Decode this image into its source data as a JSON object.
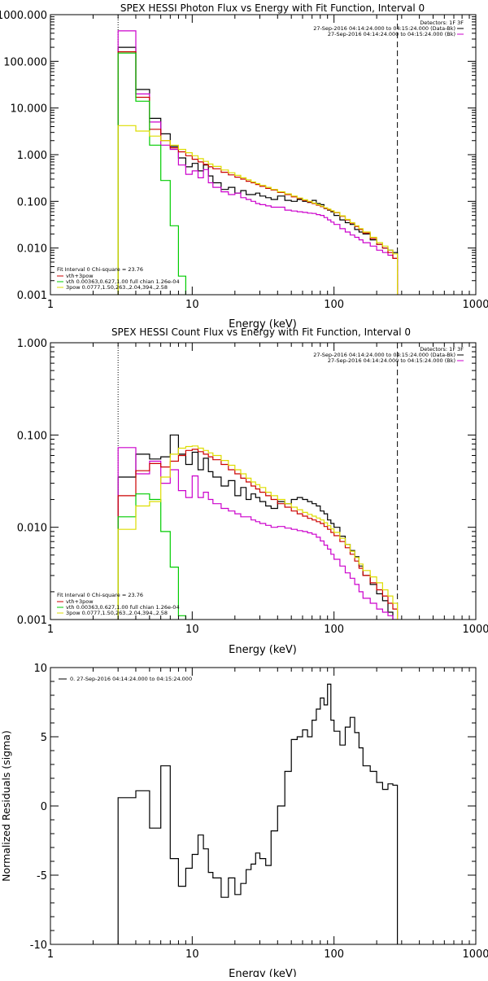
{
  "chart_data": [
    {
      "id": "photon",
      "type": "line",
      "title": "SPEX HESSI Photon Flux vs Energy with Fit Function, Interval 0",
      "xlabel": "Energy (keV)",
      "ylabel": "",
      "xscale": "log",
      "yscale": "log",
      "xlim": [
        1,
        1000
      ],
      "ylim": [
        0.001,
        1000
      ],
      "xticks": [
        1,
        10,
        100,
        1000
      ],
      "xticklabels": [
        "1",
        "10",
        "100",
        "1000"
      ],
      "yticks": [
        0.001,
        0.01,
        0.1,
        1,
        10,
        100,
        1000
      ],
      "yticklabels": [
        "0.001",
        "0.010",
        "0.100",
        "1.000",
        "10.000",
        "100.000",
        "1000.000"
      ],
      "vlines": [
        {
          "x": 3,
          "style": "dotted",
          "color": "#000000"
        },
        {
          "x": 280,
          "style": "dashed",
          "color": "#000000"
        }
      ],
      "legend": {
        "placement": "top-right",
        "header": "Detectors: 1F 3F",
        "entries": [
          {
            "text": "27-Sep-2016 04:14:24.000 to 04:15:24.000 (Data-Bk)",
            "color": "#000000"
          },
          {
            "text": "27-Sep-2016 04:14:24.000 to 04:15:24.000 (Bk)",
            "color": "#cc00cc"
          }
        ]
      },
      "fit_legend": {
        "placement": "bottom-left",
        "header": "Fit Interval 0   Chi-square = 23.76",
        "entries": [
          {
            "text": "vth+3pow",
            "color": "#cc0000"
          },
          {
            "text": "vth 0.00363,0.627,1.00  full chian 1.26e-04",
            "color": "#00cc00"
          },
          {
            "text": "3pow 0.0777,1.50,263.,2.04,394.,2.58",
            "color": "#dddd00"
          }
        ]
      },
      "x": [
        3,
        4,
        5,
        6,
        7,
        8,
        9,
        10,
        11,
        12,
        13,
        14,
        16,
        18,
        20,
        22,
        24,
        26,
        28,
        30,
        33,
        36,
        40,
        45,
        50,
        55,
        60,
        65,
        70,
        75,
        80,
        85,
        90,
        95,
        100,
        110,
        120,
        130,
        140,
        150,
        160,
        180,
        200,
        220,
        240,
        260,
        280
      ],
      "series": [
        {
          "name": "27-Sep-2016 04:14:24.000 to 04:15:24.000 (Data-Bk)",
          "color": "#000000",
          "values": [
            200,
            25,
            6,
            2.8,
            1.5,
            0.85,
            0.55,
            0.65,
            0.45,
            0.6,
            0.35,
            0.25,
            0.18,
            0.2,
            0.15,
            0.17,
            0.14,
            0.14,
            0.15,
            0.13,
            0.12,
            0.11,
            0.13,
            0.105,
            0.1,
            0.11,
            0.1,
            0.095,
            0.105,
            0.09,
            0.085,
            0.07,
            0.065,
            0.06,
            0.05,
            0.04,
            0.035,
            0.032,
            0.025,
            0.022,
            0.02,
            0.015,
            0.012,
            0.01,
            0.009,
            0.008,
            null
          ]
        },
        {
          "name": "27-Sep-2016 04:14:24.000 to 04:15:24.000 (Bk)",
          "color": "#cc00cc",
          "values": [
            450,
            20,
            5,
            1.6,
            1.3,
            0.6,
            0.38,
            0.45,
            0.32,
            0.48,
            0.25,
            0.2,
            0.16,
            0.14,
            0.15,
            0.12,
            0.11,
            0.1,
            0.09,
            0.085,
            0.08,
            0.075,
            0.075,
            0.065,
            0.062,
            0.06,
            0.058,
            0.056,
            0.055,
            0.052,
            0.05,
            0.045,
            0.04,
            0.036,
            0.032,
            0.026,
            0.022,
            0.019,
            0.017,
            0.015,
            0.013,
            0.011,
            0.009,
            0.008,
            0.007,
            0.006,
            null
          ]
        },
        {
          "name": "vth+3pow",
          "color": "#cc0000",
          "values": [
            160,
            17,
            3.5,
            2.0,
            1.4,
            1.15,
            0.95,
            0.8,
            0.7,
            0.62,
            0.55,
            0.5,
            0.42,
            0.37,
            0.33,
            0.3,
            0.27,
            0.25,
            0.23,
            0.21,
            0.19,
            0.175,
            0.155,
            0.14,
            0.125,
            0.115,
            0.105,
            0.097,
            0.09,
            0.083,
            0.077,
            0.071,
            0.066,
            0.062,
            0.057,
            0.048,
            0.04,
            0.034,
            0.029,
            0.025,
            0.021,
            0.016,
            0.012,
            0.01,
            0.008,
            0.006,
            null
          ]
        },
        {
          "name": "vth 0.00363,0.627,1.00  full chian 1.26e-04",
          "color": "#00cc00",
          "values": [
            150,
            14,
            1.6,
            0.28,
            0.03,
            0.0025,
            null,
            null,
            null,
            null,
            null,
            null,
            null,
            null,
            null,
            null,
            null,
            null,
            null,
            null,
            null,
            null,
            null,
            null,
            null,
            null,
            null,
            null,
            null,
            null,
            null,
            null,
            null,
            null,
            null,
            null,
            null,
            null,
            null,
            null,
            null,
            null,
            null,
            null,
            null,
            null,
            null
          ]
        },
        {
          "name": "3pow 0.0777,1.50,263.,2.04,394.,2.58",
          "color": "#dddd00",
          "values": [
            4.2,
            3.2,
            2.5,
            2.0,
            1.6,
            1.3,
            1.1,
            0.95,
            0.82,
            0.72,
            0.63,
            0.56,
            0.47,
            0.41,
            0.36,
            0.32,
            0.29,
            0.26,
            0.24,
            0.22,
            0.2,
            0.18,
            0.16,
            0.145,
            0.13,
            0.118,
            0.108,
            0.1,
            0.092,
            0.085,
            0.079,
            0.073,
            0.068,
            0.063,
            0.058,
            0.049,
            0.041,
            0.035,
            0.03,
            0.026,
            0.022,
            0.017,
            0.013,
            0.011,
            0.009,
            0.0075,
            null
          ]
        }
      ]
    },
    {
      "id": "count",
      "type": "line",
      "title": "SPEX HESSI Count Flux vs Energy with Fit Function, Interval 0",
      "xlabel": "Energy (keV)",
      "ylabel": "",
      "xscale": "log",
      "yscale": "log",
      "xlim": [
        1,
        1000
      ],
      "ylim": [
        0.001,
        1
      ],
      "xticks": [
        1,
        10,
        100,
        1000
      ],
      "xticklabels": [
        "1",
        "10",
        "100",
        "1000"
      ],
      "yticks": [
        0.001,
        0.01,
        0.1,
        1
      ],
      "yticklabels": [
        "0.001",
        "0.010",
        "0.100",
        "1.000"
      ],
      "vlines": [
        {
          "x": 3,
          "style": "dotted",
          "color": "#000000"
        },
        {
          "x": 280,
          "style": "dashed",
          "color": "#000000"
        }
      ],
      "legend": {
        "placement": "top-right",
        "header": "Detectors: 1F 3F",
        "entries": [
          {
            "text": "27-Sep-2016 04:14:24.000 to 04:15:24.000 (Data-Bk)",
            "color": "#000000"
          },
          {
            "text": "27-Sep-2016 04:14:24.000 to 04:15:24.000 (Bk)",
            "color": "#cc00cc"
          }
        ]
      },
      "fit_legend": {
        "placement": "bottom-left",
        "header": "Fit Interval 0   Chi-square = 23.76",
        "entries": [
          {
            "text": "vth+3pow",
            "color": "#cc0000"
          },
          {
            "text": "vth 0.00363,0.627,1.00  full chian 1.26e-04",
            "color": "#00cc00"
          },
          {
            "text": "3pow 0.0777,1.50,263.,2.04,394.,2.58",
            "color": "#dddd00"
          }
        ]
      },
      "x": [
        3,
        4,
        5,
        6,
        7,
        8,
        9,
        10,
        11,
        12,
        13,
        14,
        16,
        18,
        20,
        22,
        24,
        26,
        28,
        30,
        33,
        36,
        40,
        45,
        50,
        55,
        60,
        65,
        70,
        75,
        80,
        85,
        90,
        95,
        100,
        110,
        120,
        130,
        140,
        150,
        160,
        180,
        200,
        220,
        240,
        260,
        280
      ],
      "series": [
        {
          "name": "27-Sep-2016 04:14:24.000 to 04:15:24.000 (Data-Bk)",
          "color": "#000000",
          "values": [
            0.035,
            0.062,
            0.055,
            0.058,
            0.1,
            0.062,
            0.048,
            0.065,
            0.042,
            0.056,
            0.04,
            0.035,
            0.028,
            0.032,
            0.022,
            0.027,
            0.02,
            0.023,
            0.021,
            0.019,
            0.017,
            0.016,
            0.019,
            0.018,
            0.02,
            0.021,
            0.02,
            0.019,
            0.018,
            0.017,
            0.015,
            0.014,
            0.012,
            0.011,
            0.01,
            0.008,
            0.0065,
            0.0056,
            0.0048,
            0.0038,
            0.003,
            0.0024,
            0.0019,
            0.0016,
            0.0012,
            0.00095,
            null
          ]
        },
        {
          "name": "27-Sep-2016 04:14:24.000 to 04:15:24.000 (Bk)",
          "color": "#cc00cc",
          "values": [
            0.073,
            0.038,
            0.052,
            0.03,
            0.042,
            0.025,
            0.021,
            0.036,
            0.021,
            0.024,
            0.02,
            0.018,
            0.016,
            0.015,
            0.014,
            0.013,
            0.013,
            0.012,
            0.0115,
            0.011,
            0.0105,
            0.01,
            0.0102,
            0.0098,
            0.0095,
            0.0092,
            0.009,
            0.0087,
            0.0084,
            0.0078,
            0.0071,
            0.0064,
            0.0058,
            0.0051,
            0.0045,
            0.0038,
            0.0032,
            0.0028,
            0.0024,
            0.002,
            0.0017,
            0.0015,
            0.0013,
            0.0012,
            0.0011,
            0.001,
            null
          ]
        },
        {
          "name": "vth+3pow",
          "color": "#cc0000",
          "values": [
            0.022,
            0.041,
            0.049,
            0.045,
            0.052,
            0.06,
            0.068,
            0.07,
            0.066,
            0.062,
            0.058,
            0.054,
            0.048,
            0.042,
            0.038,
            0.034,
            0.031,
            0.028,
            0.026,
            0.024,
            0.022,
            0.02,
            0.018,
            0.0165,
            0.015,
            0.014,
            0.0132,
            0.0125,
            0.012,
            0.0115,
            0.011,
            0.0102,
            0.0095,
            0.0088,
            0.0081,
            0.007,
            0.006,
            0.0051,
            0.0043,
            0.0036,
            0.003,
            0.0025,
            0.0021,
            0.0018,
            0.0015,
            0.0013,
            null
          ]
        },
        {
          "name": "vth 0.00363,0.627,1.00  full chian 1.26e-04",
          "color": "#00cc00",
          "values": [
            0.013,
            0.023,
            0.02,
            0.009,
            0.0037,
            0.0011,
            null,
            null,
            null,
            null,
            null,
            null,
            null,
            null,
            null,
            null,
            null,
            null,
            null,
            null,
            null,
            null,
            null,
            null,
            null,
            null,
            null,
            null,
            null,
            null,
            null,
            null,
            null,
            null,
            null,
            null,
            null,
            null,
            null,
            null,
            null,
            null,
            null,
            null,
            null,
            null,
            null
          ]
        },
        {
          "name": "3pow 0.0777,1.50,263.,2.04,394.,2.58",
          "color": "#dddd00",
          "values": [
            0.0095,
            0.017,
            0.019,
            0.035,
            0.062,
            0.072,
            0.075,
            0.076,
            0.072,
            0.068,
            0.064,
            0.06,
            0.053,
            0.047,
            0.042,
            0.038,
            0.034,
            0.031,
            0.029,
            0.027,
            0.024,
            0.022,
            0.02,
            0.018,
            0.0165,
            0.0155,
            0.0145,
            0.0138,
            0.0132,
            0.0126,
            0.012,
            0.0112,
            0.0104,
            0.0096,
            0.0088,
            0.0076,
            0.0065,
            0.0055,
            0.0047,
            0.004,
            0.0034,
            0.0029,
            0.0025,
            0.0021,
            0.0018,
            0.0015,
            null
          ]
        }
      ]
    },
    {
      "id": "residuals",
      "type": "line",
      "title": "",
      "xlabel": "Energy (keV)",
      "ylabel": "Normalized Residuals (sigma)",
      "xscale": "log",
      "yscale": "linear",
      "xlim": [
        1,
        1000
      ],
      "ylim": [
        -10,
        10
      ],
      "xticks": [
        1,
        10,
        100,
        1000
      ],
      "xticklabels": [
        "1",
        "10",
        "100",
        "1000"
      ],
      "yticks": [
        -10,
        -5,
        0,
        5,
        10
      ],
      "yticklabels": [
        "-10",
        "-5",
        "0",
        "5",
        "10"
      ],
      "legend": {
        "placement": "top-left",
        "entries": [
          {
            "text": "0. 27-Sep-2016 04:14:24.000 to 04:15:24.000",
            "color": "#000000"
          }
        ]
      },
      "x": [
        3,
        4,
        5,
        6,
        7,
        8,
        9,
        10,
        11,
        12,
        13,
        14,
        16,
        18,
        20,
        22,
        24,
        26,
        28,
        30,
        33,
        36,
        40,
        45,
        50,
        55,
        60,
        65,
        70,
        75,
        80,
        85,
        90,
        95,
        100,
        110,
        120,
        130,
        140,
        150,
        160,
        180,
        200,
        220,
        240,
        260,
        280
      ],
      "series": [
        {
          "name": "0. 27-Sep-2016 04:14:24.000 to 04:15:24.000",
          "color": "#000000",
          "values": [
            0.6,
            1.1,
            -1.6,
            2.9,
            -3.8,
            -5.8,
            -4.5,
            -3.5,
            -2.1,
            -3.1,
            -4.8,
            -5.2,
            -6.6,
            -5.2,
            -6.4,
            -5.6,
            -4.6,
            -4.2,
            -3.4,
            -3.8,
            -4.3,
            -1.8,
            0.0,
            2.5,
            4.8,
            5.0,
            5.5,
            5.0,
            6.2,
            7.0,
            7.8,
            7.3,
            8.8,
            6.2,
            5.4,
            4.4,
            5.7,
            6.4,
            5.3,
            4.2,
            2.9,
            2.5,
            1.7,
            1.2,
            1.6,
            1.5,
            null
          ]
        }
      ]
    }
  ]
}
